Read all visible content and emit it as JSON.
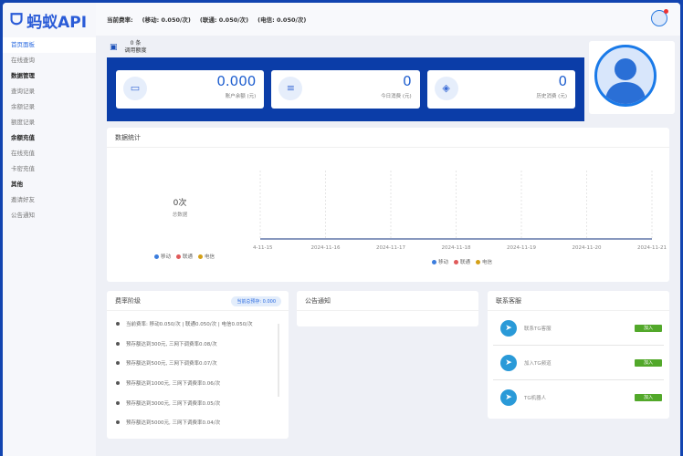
{
  "brand": {
    "logo_text": "蚂蚁API"
  },
  "header": {
    "rate_label": "当前费率:",
    "mobile": "(移动: 0.050/次)",
    "unicom": "(联通: 0.050/次)",
    "telecom": "(电信: 0.050/次)"
  },
  "sidebar": {
    "items": [
      {
        "label": "首页面板",
        "type": "item",
        "active": true
      },
      {
        "label": "在线查询",
        "type": "item"
      },
      {
        "label": "数据管理",
        "type": "group"
      },
      {
        "label": "查询记录",
        "type": "item"
      },
      {
        "label": "余额记录",
        "type": "item"
      },
      {
        "label": "额度记录",
        "type": "item"
      },
      {
        "label": "余额充值",
        "type": "group"
      },
      {
        "label": "在线充值",
        "type": "item"
      },
      {
        "label": "卡密充值",
        "type": "item"
      },
      {
        "label": "其他",
        "type": "group"
      },
      {
        "label": "邀请好友",
        "type": "item"
      },
      {
        "label": "公告通知",
        "type": "item"
      }
    ]
  },
  "calls": {
    "count": "0 条",
    "label": "调用额度"
  },
  "stats": [
    {
      "value": "0.000",
      "label": "账户余额 (元)",
      "icon": "card-icon"
    },
    {
      "value": "0",
      "label": "今日消费 (元)",
      "icon": "list-icon"
    },
    {
      "value": "0",
      "label": "历史消费 (元)",
      "icon": "layers-icon"
    }
  ],
  "data_stats": {
    "title": "数据统计",
    "total": "0次",
    "total_label": "总数据"
  },
  "chart_data": {
    "type": "line",
    "categories": [
      "2024-11-15",
      "2024-11-16",
      "2024-11-17",
      "2024-11-18",
      "2024-11-19",
      "2024-11-20",
      "2024-11-21"
    ],
    "series": [
      {
        "name": "移动",
        "values": [
          0,
          0,
          0,
          0,
          0,
          0,
          0
        ],
        "color": "#3b7ddd"
      },
      {
        "name": "联通",
        "values": [
          0,
          0,
          0,
          0,
          0,
          0,
          0
        ],
        "color": "#e05a5a"
      },
      {
        "name": "电信",
        "values": [
          0,
          0,
          0,
          0,
          0,
          0,
          0
        ],
        "color": "#d4a017"
      }
    ],
    "legend": "bottom",
    "grid": true
  },
  "rates": {
    "title": "费率阶级",
    "badge": "当前总预存: 0.000",
    "items": [
      "当前费率: 移动0.050/次 | 联通0.050/次 | 电信0.050/次",
      "预存额达到300元, 三网下调费率0.08/次",
      "预存额达到500元, 三网下调费率0.07/次",
      "预存额达到1000元, 三网下调费率0.06/次",
      "预存额达到3000元, 三网下调费率0.05/次",
      "预存额达到5000元, 三网下调费率0.04/次"
    ]
  },
  "notice": {
    "title": "公告通知"
  },
  "contact": {
    "title": "联系客服",
    "items": [
      {
        "label": "联系TG客服",
        "button": "加入"
      },
      {
        "label": "加入TG频道",
        "button": "加入"
      },
      {
        "label": "TG机器人",
        "button": "加入"
      }
    ]
  }
}
